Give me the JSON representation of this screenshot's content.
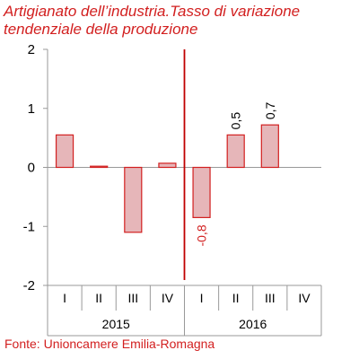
{
  "title": {
    "line1": "Artigianato dell’industria.Tasso di variazione",
    "line2": "tendenziale della produzione"
  },
  "source": "Fonte: Unioncamere Emilia-Romagna",
  "colors": {
    "title": "#d21f1f",
    "bar_fill": "#e6b6b9",
    "bar_stroke": "#d21f1f",
    "divider": "#c00000",
    "axis": "#999999",
    "text": "#000000"
  },
  "chart_data": {
    "type": "bar",
    "title": "Artigianato dell’industria.Tasso di variazione tendenziale della produzione",
    "xlabel": "",
    "ylabel": "",
    "ylim": [
      -2,
      2
    ],
    "yticks": [
      2,
      1,
      0,
      -1,
      -2
    ],
    "grid": false,
    "categories": [
      "I",
      "II",
      "III",
      "IV",
      "I",
      "II",
      "III",
      "IV"
    ],
    "years": [
      {
        "label": "2015",
        "quarters": 4
      },
      {
        "label": "2016",
        "quarters": 4
      }
    ],
    "values": [
      0.55,
      0.02,
      -1.1,
      0.07,
      -0.85,
      0.55,
      0.72,
      null
    ],
    "data_labels": [
      null,
      null,
      null,
      null,
      "-0,8",
      "0,5",
      "0,7",
      null
    ],
    "vertical_marker_between": [
      3,
      4
    ]
  }
}
